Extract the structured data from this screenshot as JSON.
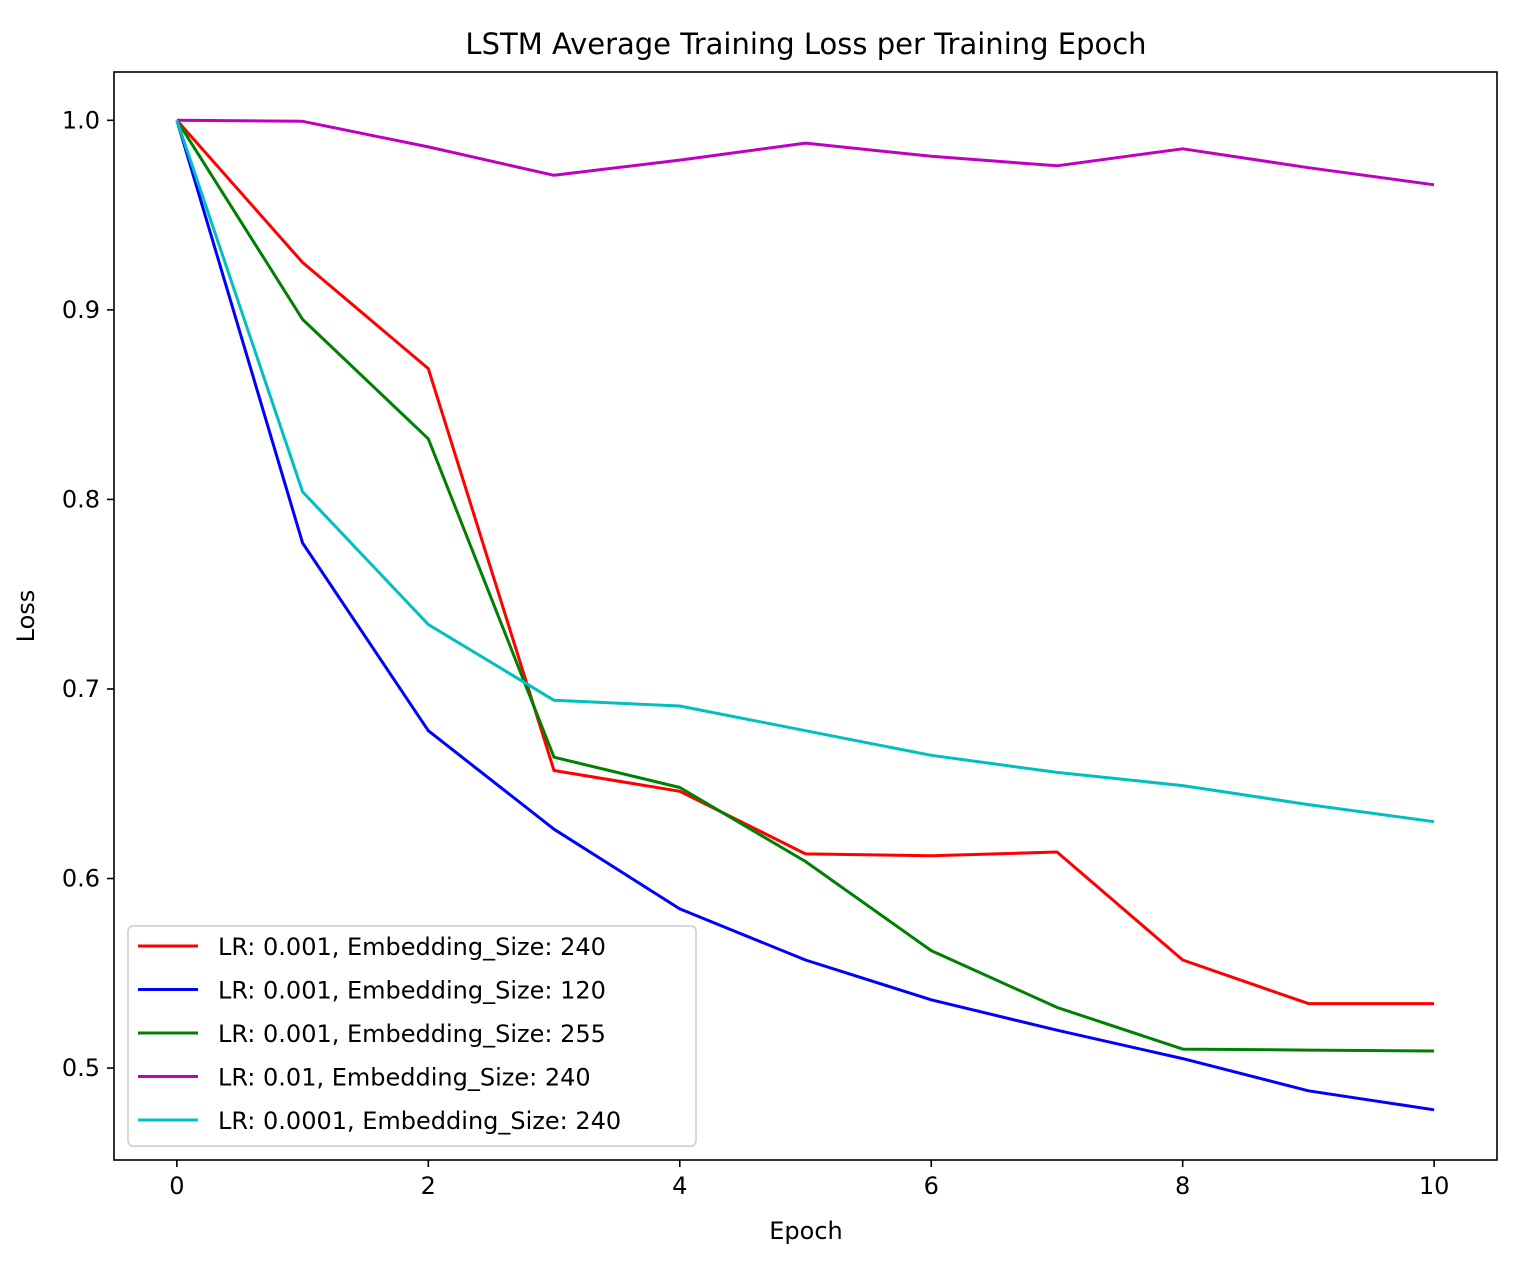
{
  "chart_data": {
    "type": "line",
    "title": "LSTM Average Training Loss per Training Epoch",
    "xlabel": "Epoch",
    "ylabel": "Loss",
    "xlim": [
      -0.5,
      10.5
    ],
    "ylim": [
      0.4515,
      1.0255
    ],
    "xticks": [
      0,
      2,
      4,
      6,
      8,
      10
    ],
    "xtick_labels": [
      "0",
      "2",
      "4",
      "6",
      "8",
      "10"
    ],
    "yticks": [
      0.5,
      0.6,
      0.7,
      0.8,
      0.9,
      1.0
    ],
    "ytick_labels": [
      "0.5",
      "0.6",
      "0.7",
      "0.8",
      "0.9",
      "1.0"
    ],
    "grid": false,
    "legend_position": "lower-left",
    "x": [
      0,
      1,
      2,
      3,
      4,
      5,
      6,
      7,
      8,
      9,
      10
    ],
    "series": [
      {
        "name": "LR: 0.001, Embedding_Size: 240",
        "color": "#ff0000",
        "values": [
          1.0,
          0.925,
          0.869,
          0.657,
          0.646,
          0.613,
          0.612,
          0.614,
          0.557,
          0.534,
          0.534
        ]
      },
      {
        "name": "LR: 0.001, Embedding_Size: 120",
        "color": "#0000ff",
        "values": [
          1.0,
          0.777,
          0.678,
          0.626,
          0.584,
          0.557,
          0.536,
          0.52,
          0.505,
          0.488,
          0.478
        ]
      },
      {
        "name": "LR: 0.001, Embedding_Size: 255",
        "color": "#008000",
        "values": [
          1.0,
          0.895,
          0.832,
          0.664,
          0.648,
          0.609,
          0.562,
          0.532,
          0.51,
          0.5095,
          0.509
        ]
      },
      {
        "name": "LR: 0.01, Embedding_Size: 240",
        "color": "#bf00bf",
        "values": [
          1.0,
          0.9995,
          0.986,
          0.971,
          0.979,
          0.988,
          0.981,
          0.976,
          0.985,
          0.975,
          0.966
        ]
      },
      {
        "name": "LR: 0.0001, Embedding_Size: 240",
        "color": "#00bfbf",
        "values": [
          1.0,
          0.804,
          0.734,
          0.694,
          0.691,
          0.678,
          0.665,
          0.656,
          0.649,
          0.639,
          0.63
        ]
      }
    ]
  }
}
